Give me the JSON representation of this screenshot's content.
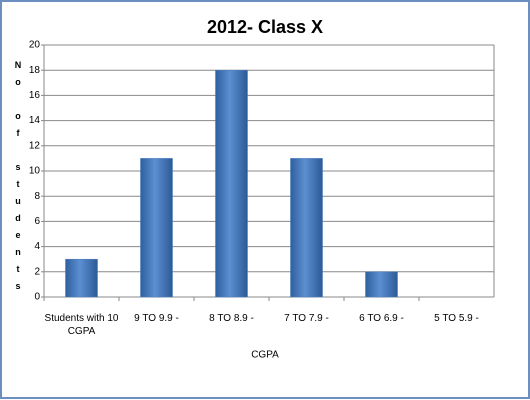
{
  "chart_data": {
    "type": "bar",
    "title": "2012- Class X",
    "x_label": "CGPA",
    "y_label": "No of students",
    "categories": [
      "Students with 10 CGPA",
      "9 TO 9.9  -",
      "8 TO 8.9  -",
      "7 TO 7.9  -",
      "6 TO 6.9  -",
      "5 TO 5.9  -"
    ],
    "values": [
      3,
      11,
      18,
      11,
      2,
      0
    ],
    "color": "#4a7ebb",
    "ylim": [
      0,
      20
    ],
    "yticks": [
      0,
      2,
      4,
      6,
      8,
      10,
      12,
      14,
      16,
      18,
      20
    ],
    "grid": true
  }
}
